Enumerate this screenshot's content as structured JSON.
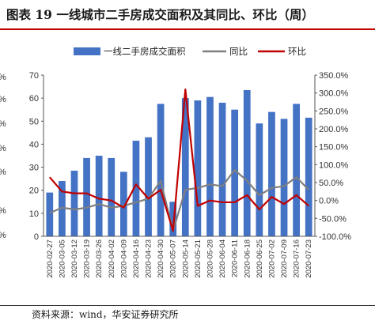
{
  "header": {
    "title": "图表 19  一线城市二手房成交面积及其同比、环比（周）"
  },
  "footer": {
    "source": "资料来源：wind，华安证券研究所"
  },
  "colors": {
    "bar": "#4472c4",
    "yoy": "#7f7f7f",
    "mom": "#c00000",
    "title_rule": "#c00000"
  },
  "chart_data": {
    "type": "bar",
    "categories": [
      "2020-02-27",
      "2020-03-05",
      "2020-03-12",
      "2020-03-19",
      "2020-03-26",
      "2020-04-02",
      "2020-04-09",
      "2020-04-16",
      "2020-04-23",
      "2020-04-30",
      "2020-05-07",
      "2020-05-14",
      "2020-05-21",
      "2020-05-28",
      "2020-06-04",
      "2020-06-11",
      "2020-06-18",
      "2020-06-25",
      "2020-07-02",
      "2020-07-09",
      "2020-07-16",
      "2020-07-23"
    ],
    "x_tick_labels": [
      "2020-02-27",
      "2020-03-05",
      "2020-03-12",
      "2020-03-19",
      "2020-03-26",
      "2020-04-02",
      "2020-04-09",
      "2020-04-16",
      "2020-04-23",
      "2020-04-30",
      "2020-05-07",
      "2020-05-14",
      "2020-05-21",
      "2020-05-28",
      "2020-06-04",
      "2020-06-11",
      "2020-06-18",
      "2020-06-25",
      "2020-07-02",
      "2020-07-09",
      "2020-07-16",
      "2020-07-23"
    ],
    "series": [
      {
        "name": "一线二手房成交面积",
        "type": "bar",
        "axis": "left",
        "values": [
          19,
          24,
          28.5,
          34,
          35,
          34,
          28,
          41.5,
          43,
          57.5,
          15,
          60,
          59,
          60.5,
          58,
          55,
          63.5,
          49,
          54,
          51,
          57.5,
          51.5
        ]
      },
      {
        "name": "同比",
        "type": "line",
        "axis": "right",
        "values": [
          -35,
          -20,
          -25,
          -20,
          -10,
          -20,
          -15,
          -5,
          5,
          55,
          -85,
          30,
          35,
          45,
          40,
          85,
          55,
          15,
          35,
          40,
          65,
          30
        ]
      },
      {
        "name": "环比",
        "type": "line",
        "axis": "right",
        "values": [
          65,
          25,
          20,
          20,
          5,
          0,
          -20,
          45,
          5,
          30,
          -85,
          310,
          -15,
          0,
          -5,
          -5,
          15,
          -25,
          10,
          -10,
          15,
          -15
        ]
      }
    ],
    "left_axis": {
      "min": 0,
      "max": 70,
      "step": 10,
      "tick_labels": [
        "0",
        "10",
        "20",
        "30",
        "40",
        "50",
        "60",
        "70"
      ]
    },
    "right_axis": {
      "min": -100,
      "max": 350,
      "step": 50,
      "tick_labels": [
        "-100.0%",
        "-50.0%",
        "0.0%",
        "50.0%",
        "100.0%",
        "150.0%",
        "200.0%",
        "250.0%",
        "300.0%",
        "350.0%"
      ]
    },
    "left_edge_fragments": [
      "%",
      "%",
      "%",
      "%",
      "%",
      "%",
      "%"
    ],
    "legend_placement": "top",
    "grid": false
  }
}
